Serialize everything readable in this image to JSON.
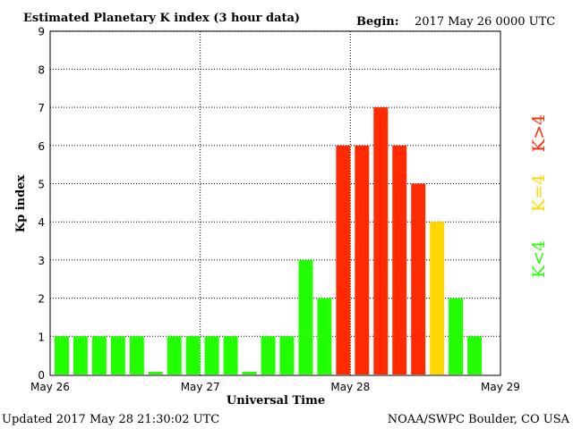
{
  "header": {
    "title": "Estimated Planetary K index (3 hour data)",
    "begin_label": "Begin:",
    "begin_value": "2017 May 26 0000 UTC"
  },
  "footer": {
    "updated": "Updated 2017 May 28 21:30:02 UTC",
    "source": "NOAA/SWPC Boulder, CO USA"
  },
  "colors": {
    "low": "#22ff00",
    "equal": "#ffd700",
    "high": "#ff2a00"
  },
  "chart_data": {
    "type": "bar",
    "title": "Estimated Planetary K index (3 hour data)",
    "xlabel": "Universal Time",
    "ylabel": "Kp index",
    "ylim": [
      0,
      9
    ],
    "yticks": [
      "0",
      "1",
      "2",
      "3",
      "4",
      "5",
      "6",
      "7",
      "8",
      "9"
    ],
    "xticks": [
      "May 26",
      "May 27",
      "May 28",
      "May 29"
    ],
    "grid": "dotted",
    "bins_per_day": 8,
    "legend": [
      {
        "label": "K<4",
        "color": "#22ff00"
      },
      {
        "label": "K=4",
        "color": "#ffd700"
      },
      {
        "label": "K>4",
        "color": "#ff2a00"
      }
    ],
    "values": [
      1,
      1,
      1,
      1,
      1,
      0,
      1,
      1,
      1,
      1,
      0,
      1,
      1,
      3,
      2,
      6,
      6,
      7,
      6,
      5,
      4,
      2,
      1
    ]
  }
}
